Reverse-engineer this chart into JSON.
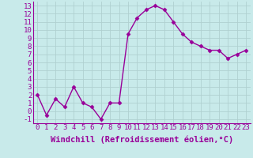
{
  "x": [
    0,
    1,
    2,
    3,
    4,
    5,
    6,
    7,
    8,
    9,
    10,
    11,
    12,
    13,
    14,
    15,
    16,
    17,
    18,
    19,
    20,
    21,
    22,
    23
  ],
  "y": [
    2,
    -0.5,
    1.5,
    0.5,
    3,
    1,
    0.5,
    -1,
    1,
    1,
    9.5,
    11.5,
    12.5,
    13,
    12.5,
    11,
    9.5,
    8.5,
    8,
    7.5,
    7.5,
    6.5,
    7,
    7.5
  ],
  "line_color": "#990099",
  "marker": "D",
  "marker_size": 2.5,
  "background_color": "#c8eaea",
  "grid_color": "#b0d0d0",
  "xlabel": "Windchill (Refroidissement éolien,°C)",
  "xlabel_fontsize": 7.5,
  "xlim": [
    -0.5,
    23.5
  ],
  "ylim": [
    -1.5,
    13.5
  ],
  "yticks": [
    -1,
    0,
    1,
    2,
    3,
    4,
    5,
    6,
    7,
    8,
    9,
    10,
    11,
    12,
    13
  ],
  "xticks": [
    0,
    1,
    2,
    3,
    4,
    5,
    6,
    7,
    8,
    9,
    10,
    11,
    12,
    13,
    14,
    15,
    16,
    17,
    18,
    19,
    20,
    21,
    22,
    23
  ],
  "tick_fontsize": 6.5,
  "line_width": 1.0
}
